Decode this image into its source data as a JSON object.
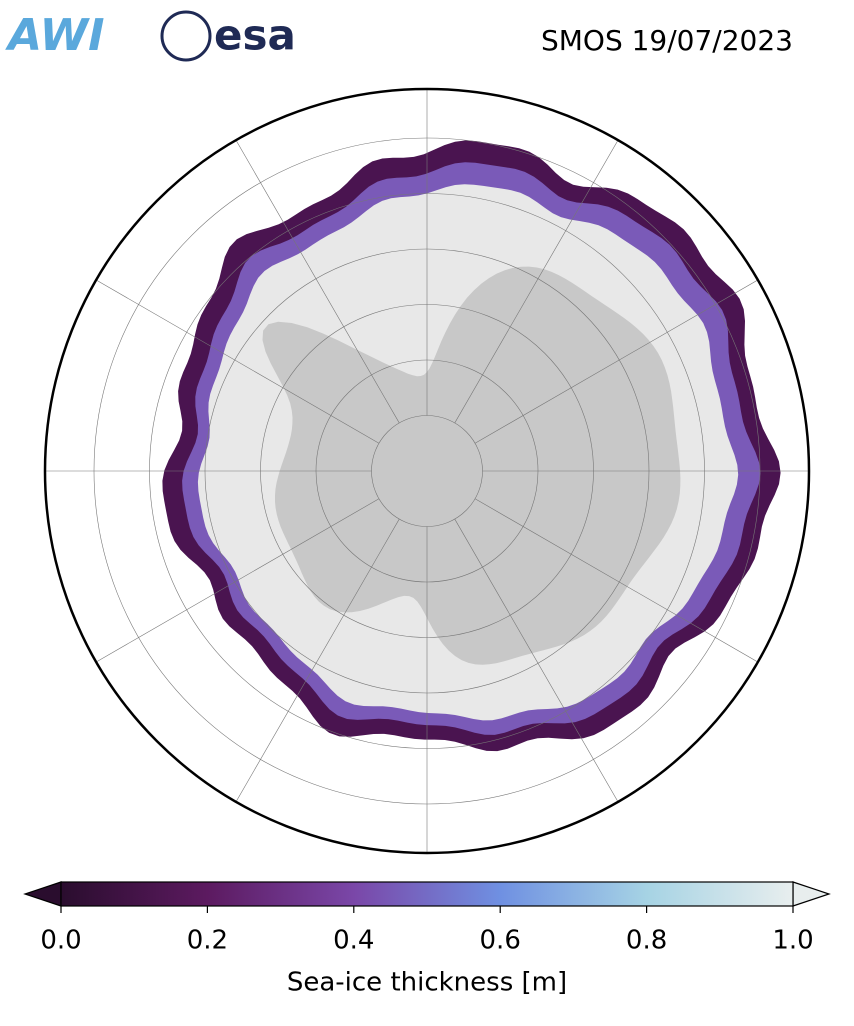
{
  "header": {
    "logos": [
      "AWI",
      "esa"
    ],
    "title": "SMOS 19/07/2023"
  },
  "colorbar": {
    "label": "Sea-ice thickness [m]",
    "lim": [
      0,
      1
    ],
    "ticks": [
      {
        "value": 0,
        "label": "0.0"
      },
      0.2,
      0.4,
      0.6,
      0.8,
      {
        "value": 1,
        "label": "1.0"
      }
    ],
    "colors": [
      "#2a0d2e",
      "#5c1a60",
      "#7a47a8",
      "#6f90e2",
      "#a6d3e4",
      "#e8eeee"
    ]
  }
}
